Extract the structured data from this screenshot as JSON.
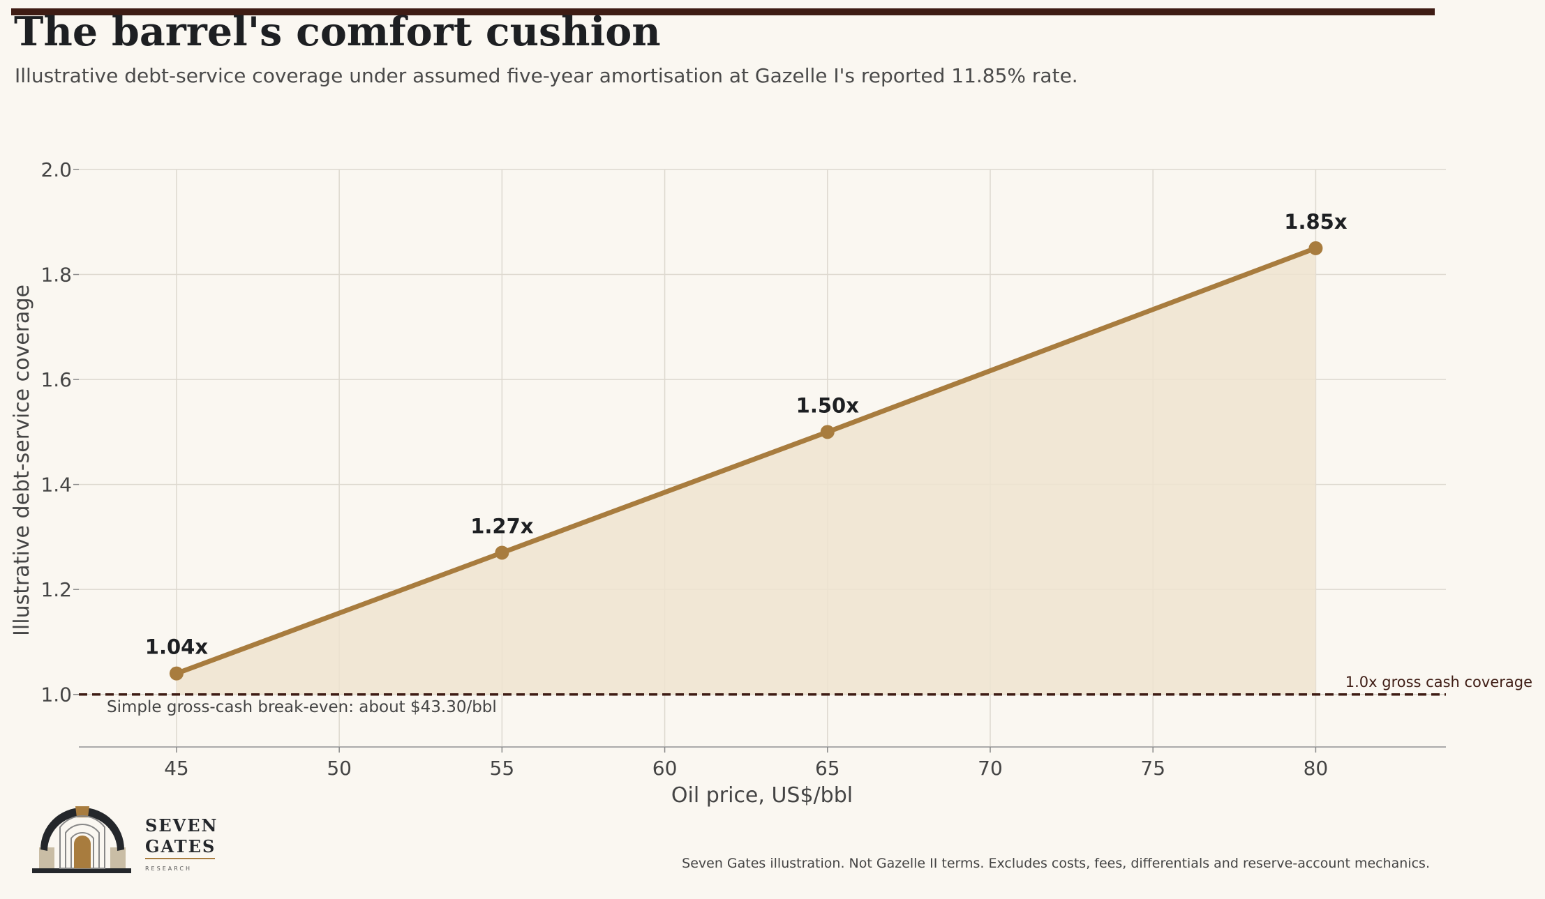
{
  "header": {
    "title": "The barrel's comfort cushion",
    "subtitle": "Illustrative debt-service coverage under assumed five-year amortisation at Gazelle I's reported 11.85% rate."
  },
  "chart_data": {
    "type": "line",
    "title": "The barrel's comfort cushion",
    "subtitle": "Illustrative debt-service coverage under assumed five-year amortisation at Gazelle I's reported 11.85% rate.",
    "xlabel": "Oil price, US$/bbl",
    "ylabel": "Illustrative debt-service coverage",
    "xlim": [
      42,
      84
    ],
    "ylim": [
      0.9,
      2.0
    ],
    "x_ticks": [
      45,
      50,
      55,
      60,
      65,
      70,
      75,
      80
    ],
    "y_ticks": [
      1.0,
      1.2,
      1.4,
      1.6,
      1.8,
      2.0
    ],
    "y_tick_labels": [
      "1.0",
      "1.2",
      "1.4",
      "1.6",
      "1.8",
      "2.0"
    ],
    "grid": true,
    "area_fill": true,
    "series": [
      {
        "x": [
          45,
          55,
          65,
          80
        ],
        "values": [
          1.04,
          1.27,
          1.5,
          1.85
        ],
        "labels": [
          "1.04x",
          "1.27x",
          "1.50x",
          "1.85x"
        ],
        "color": "#a87c3e"
      }
    ],
    "reference_line": {
      "y": 1.0,
      "label": "1.0x gross cash coverage",
      "style": "dashed",
      "color": "#3e1c14"
    },
    "annotations": [
      {
        "text": "Simple gross-cash break-even: about $43.30/bbl"
      }
    ]
  },
  "footer": {
    "note": "Seven Gates illustration. Not Gazelle II terms. Excludes costs, fees, differentials and reserve-account mechanics."
  },
  "logo": {
    "line1": "SEVEN",
    "line2": "GATES",
    "line3": "RESEARCH"
  },
  "colors": {
    "background": "#faf7f1",
    "accent": "#a87c3e",
    "fill": "#efe4d0",
    "dark": "#3e1c14",
    "text": "#1d1f22"
  }
}
